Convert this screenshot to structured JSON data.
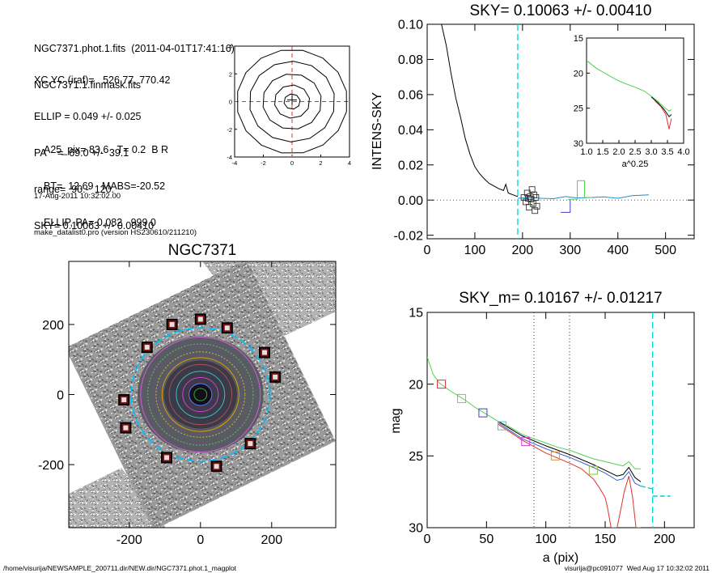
{
  "info_block": {
    "lines_a": [
      "NGC7371.phot.1.fits  (2011-04-01T17:41:16)",
      "NGC7371.1.finmask.fits"
    ],
    "lines_b": [
      "XC,YC (iraf)=   526.77, 770.42",
      "ELLIP = 0.049 +/- 0.025",
      "PA    =  69.0 +/-  39.1",
      "range=  90.-  120.",
      "SKY= 0.10063 +/- 0.00410"
    ],
    "lines_c": [
      "A25_pix= 83.6   T= 0.2  B R",
      "BT=  12.69   MABS=-20.52",
      "ELLIP, PA= 0.082   999.0"
    ],
    "lines_d": [
      "17-Aug-2011 10:32:02.00",
      "make_datalist0.pro (version HS230610/211210)"
    ]
  },
  "footer": {
    "path": "/home/visurija/NEWSAMPLE_200711.dir/NEW.dir/NGC7371.phot.1_magplot",
    "user_time": "visurija@pc091077  Wed Aug 17 10:32:02 2011"
  },
  "chart_data": [
    {
      "id": "sky-profile",
      "type": "line",
      "title": "SKY= 0.10063 +/- 0.00410",
      "xlabel": "",
      "ylabel": "INTENS-SKY",
      "xlim": [
        0,
        560
      ],
      "ylim": [
        -0.022,
        0.1
      ],
      "xticks": [
        0,
        100,
        200,
        300,
        400,
        500
      ],
      "yticks": [
        -0.02,
        0.0,
        0.02,
        0.04,
        0.06,
        0.08,
        0.1
      ],
      "ytick_labels": [
        "-0.02",
        "0.00",
        "0.02",
        "0.04",
        "0.06",
        "0.08",
        "0.10"
      ],
      "zero_line": 0,
      "sky_marker_x": 190,
      "series": [
        {
          "color": "#000000",
          "x": [
            30,
            40,
            50,
            60,
            70,
            75,
            80,
            90,
            100,
            110,
            120,
            130,
            140,
            150,
            160,
            165,
            170,
            175,
            180,
            185,
            190
          ],
          "y": [
            0.1,
            0.088,
            0.072,
            0.058,
            0.047,
            0.041,
            0.035,
            0.026,
            0.019,
            0.015,
            0.012,
            0.0095,
            0.008,
            0.0065,
            0.0055,
            0.009,
            0.004,
            0.0035,
            0.003,
            0.0025,
            0.002
          ]
        },
        {
          "color": "#1e90d0",
          "x": [
            190,
            215,
            240,
            265,
            290,
            315,
            345,
            370,
            400,
            430,
            465
          ],
          "y": [
            0.001,
            0.0015,
            0.001,
            0.0008,
            0.002,
            0.0012,
            0.0015,
            0.0018,
            0.001,
            0.0025,
            0.003
          ]
        },
        {
          "color": "#4040c0",
          "x": [
            280,
            300,
            300
          ],
          "y": [
            -0.007,
            -0.007,
            0.0005
          ]
        },
        {
          "color": "#50d050",
          "x": [
            295,
            315,
            315,
            330,
            330,
            345
          ],
          "y": [
            0.0005,
            0.0005,
            0.011,
            0.011,
            0.0015,
            0.0015
          ]
        }
      ],
      "squares_x": [
        203,
        207,
        210,
        212,
        214,
        216,
        218,
        220,
        222,
        224,
        226,
        228,
        230
      ],
      "squares_y": [
        0.0015,
        -0.001,
        0.004,
        0.001,
        -0.004,
        0.002,
        0.0005,
        0.006,
        -0.002,
        0.003,
        -0.006,
        0.0015,
        -0.0035
      ]
    },
    {
      "id": "inset-profile",
      "type": "line",
      "title": "",
      "xlabel": "a^0.25",
      "ylabel": "",
      "xlim": [
        1.0,
        4.0
      ],
      "ylim": [
        30,
        15
      ],
      "xticks": [
        1.0,
        1.5,
        2.0,
        2.5,
        3.0,
        3.5,
        4.0
      ],
      "xtick_labels": [
        "1.0",
        "1.5",
        "2.0",
        "2.5",
        "3.0",
        "3.5",
        "4.0"
      ],
      "yticks": [
        15,
        20,
        25,
        30
      ],
      "series": [
        {
          "color": "#50d050",
          "x": [
            1.0,
            1.3,
            1.6,
            1.9,
            2.2,
            2.5,
            2.8,
            3.0,
            3.2,
            3.4,
            3.55,
            3.62
          ],
          "y": [
            18.2,
            19.3,
            20.1,
            20.9,
            21.5,
            22.0,
            22.6,
            23.3,
            24.0,
            24.9,
            25.4,
            25.2
          ]
        },
        {
          "color": "#000000",
          "x": [
            3.0,
            3.2,
            3.4,
            3.55,
            3.62
          ],
          "y": [
            23.4,
            24.2,
            25.2,
            26.2,
            25.9
          ]
        },
        {
          "color": "#e03030",
          "x": [
            3.1,
            3.3,
            3.45,
            3.55,
            3.62
          ],
          "y": [
            23.9,
            24.8,
            25.9,
            28.0,
            26.5
          ]
        }
      ]
    },
    {
      "id": "galaxy-image",
      "type": "scatter",
      "title": "NGC7371",
      "xlabel": "",
      "ylabel": "",
      "xlim": [
        -370,
        380
      ],
      "ylim": [
        -380,
        380
      ],
      "xticks": [
        -200,
        0,
        200
      ],
      "yticks": [
        -200,
        0,
        200
      ],
      "ellipse_radii": [
        18,
        32,
        50,
        68,
        88,
        108,
        125,
        148,
        168,
        195
      ],
      "ellipse_colors": [
        "#40a040",
        "#7070ff",
        "#d040d0",
        "#40c0c0",
        "#b05050",
        "#e0a000",
        "#c0c040",
        "#60c060",
        "#d060d0",
        "#00bfff"
      ],
      "mask_x": [
        -80,
        0,
        75,
        180,
        210,
        140,
        -95,
        45,
        -215,
        -210,
        -150
      ],
      "mask_y": [
        200,
        215,
        190,
        120,
        50,
        -140,
        -180,
        -205,
        -15,
        -95,
        135
      ]
    },
    {
      "id": "mag-profile",
      "type": "line",
      "title": "SKY_m=  0.10167 +/- 0.01217",
      "xlabel": "a (pix)",
      "ylabel": "mag",
      "xlim": [
        0,
        225
      ],
      "ylim": [
        30,
        15
      ],
      "xticks": [
        0,
        50,
        100,
        150,
        200
      ],
      "yticks": [
        15,
        20,
        25,
        30
      ],
      "range_lines": [
        90,
        120
      ],
      "sky_x": 190,
      "series": [
        {
          "color": "#50d050",
          "x": [
            0,
            5,
            10,
            20,
            30,
            40,
            50,
            60,
            70,
            80,
            90,
            100,
            110,
            120,
            130,
            140,
            150,
            160,
            165,
            170,
            175,
            180
          ],
          "y": [
            18.1,
            19.3,
            19.9,
            20.5,
            21.0,
            21.6,
            22.1,
            22.6,
            23.0,
            23.5,
            23.8,
            24.1,
            24.4,
            24.6,
            24.9,
            25.2,
            25.4,
            25.6,
            25.7,
            25.4,
            25.9,
            25.9
          ]
        },
        {
          "color": "#000000",
          "x": [
            60,
            80,
            100,
            120,
            140,
            150,
            160,
            165,
            170,
            175,
            180
          ],
          "y": [
            22.6,
            23.6,
            24.3,
            24.9,
            25.6,
            26.0,
            26.4,
            26.3,
            25.8,
            26.5,
            26.8
          ]
        },
        {
          "color": "#4060d0",
          "x": [
            60,
            80,
            100,
            120,
            140,
            150,
            160,
            165,
            170,
            175,
            180
          ],
          "y": [
            22.7,
            23.8,
            24.5,
            25.1,
            25.8,
            26.2,
            26.7,
            26.6,
            26.1,
            26.9,
            27.1
          ]
        },
        {
          "color": "#e03030",
          "x": [
            60,
            80,
            100,
            120,
            130,
            140,
            145,
            150,
            152,
            155,
            160,
            163,
            166,
            170,
            173,
            176,
            180
          ],
          "y": [
            22.8,
            23.9,
            24.8,
            25.5,
            25.9,
            26.6,
            27.2,
            27.9,
            28.6,
            30,
            30,
            28.8,
            27.5,
            26.4,
            27.8,
            30,
            30
          ]
        },
        {
          "color": "#00ced1",
          "x": [
            180,
            190
          ],
          "y": [
            27.1,
            27.3
          ],
          "dash": "6,3"
        },
        {
          "color": "#00ced1",
          "x": [
            190,
            205
          ],
          "y": [
            27.8,
            27.8
          ],
          "dash": "6,3"
        }
      ],
      "squares_x": [
        12,
        29,
        47,
        63,
        83,
        108,
        140
      ],
      "squares_y": [
        20.0,
        21.0,
        22.0,
        22.9,
        24.0,
        25.0,
        26.0
      ],
      "square_colors": [
        "#e03030",
        "#90c040",
        "#4040c0",
        "#40c0e0",
        "#d040d0",
        "#e09030",
        "#90c040"
      ]
    },
    {
      "id": "isophote-contours",
      "type": "line",
      "title": "",
      "xlabel": "",
      "ylabel": "",
      "xlim": [
        -4,
        4
      ],
      "ylim": [
        -4,
        4
      ],
      "xticks": [
        -4,
        -2,
        0,
        2,
        4
      ],
      "yticks": [
        -4,
        -2,
        0,
        2,
        4
      ],
      "radii": [
        0.55,
        1.2,
        2.0,
        2.9,
        3.75
      ]
    }
  ]
}
